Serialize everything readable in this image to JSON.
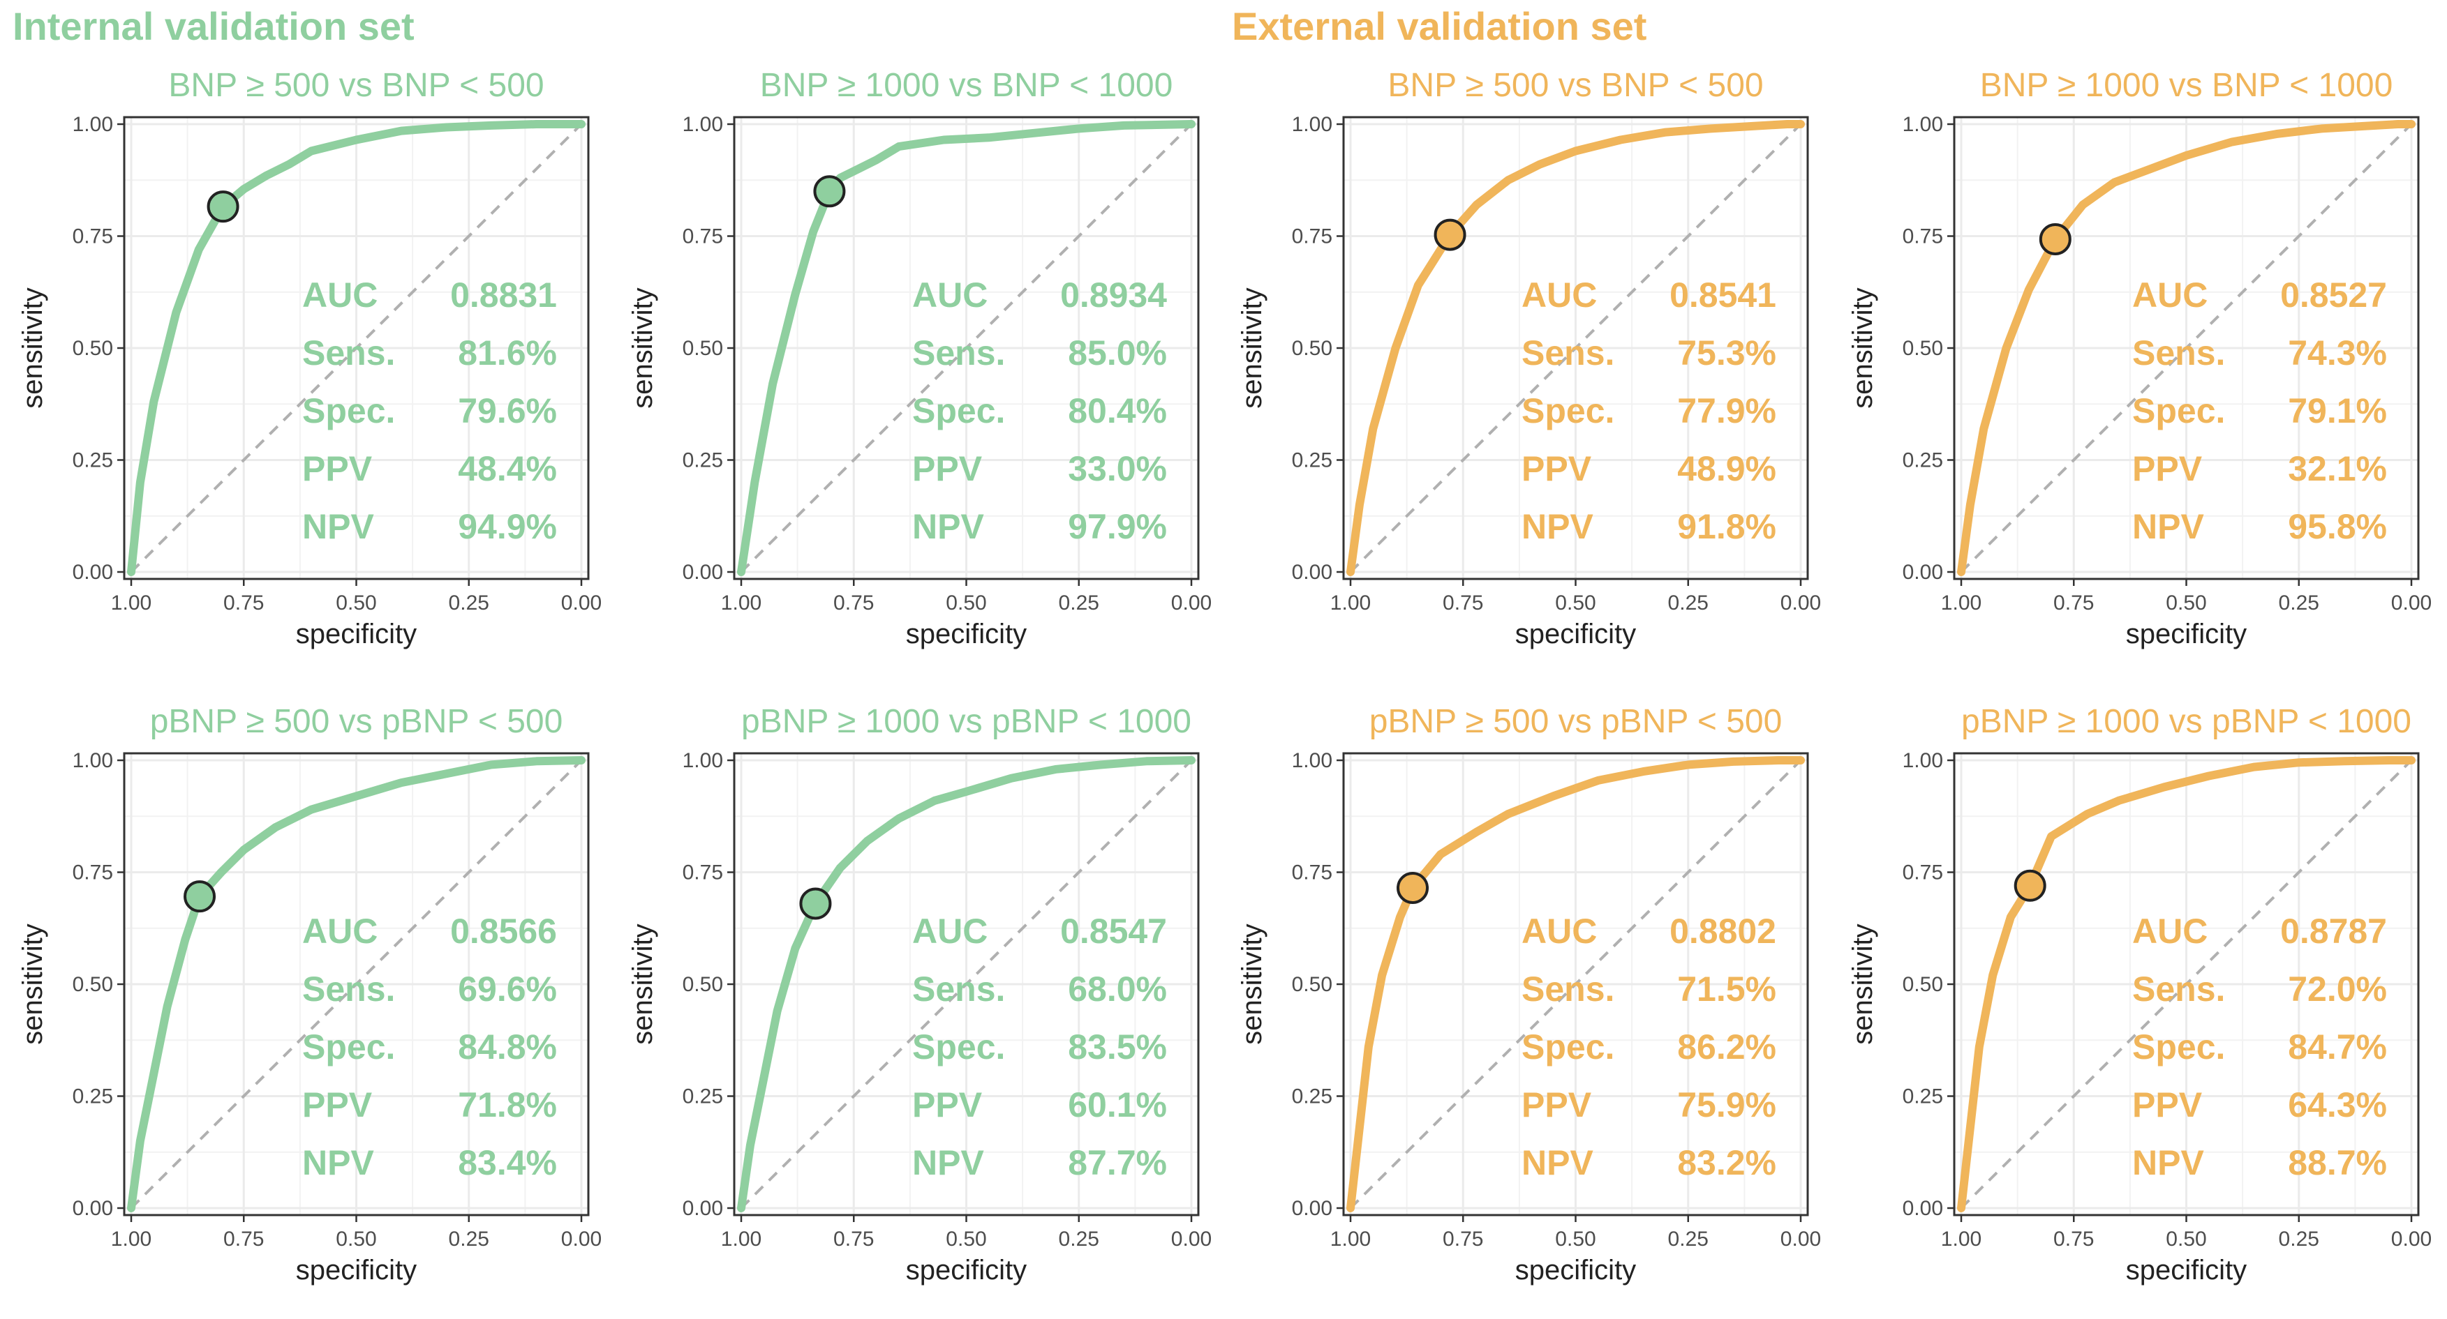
{
  "sections": {
    "internal_title": "Internal validation set",
    "external_title": "External validation set"
  },
  "colors": {
    "internal": "#8fcf9f",
    "external": "#f0b55a",
    "diagonal": "#b0b0b0",
    "grid": "#ebebeb"
  },
  "chart_data": [
    {
      "type": "line",
      "group": "internal",
      "title": "BNP ≥ 500 vs BNP < 500",
      "xlabel": "specificity",
      "ylabel": "sensitivity",
      "xlim": [
        1,
        0
      ],
      "ylim": [
        0,
        1
      ],
      "xticks": [
        "1.00",
        "0.75",
        "0.50",
        "0.25",
        "0.00"
      ],
      "yticks": [
        "0.00",
        "0.25",
        "0.50",
        "0.75",
        "1.00"
      ],
      "roc": {
        "specificity": [
          1.0,
          0.98,
          0.95,
          0.9,
          0.85,
          0.796,
          0.75,
          0.7,
          0.65,
          0.6,
          0.5,
          0.4,
          0.3,
          0.2,
          0.1,
          0.0
        ],
        "sensitivity": [
          0.0,
          0.2,
          0.38,
          0.58,
          0.72,
          0.816,
          0.855,
          0.885,
          0.91,
          0.94,
          0.965,
          0.985,
          0.993,
          0.997,
          1.0,
          1.0
        ]
      },
      "cutoff": {
        "specificity": 0.796,
        "sensitivity": 0.816
      },
      "metrics": [
        {
          "label": "AUC",
          "value": "0.8831"
        },
        {
          "label": "Sens.",
          "value": "81.6%"
        },
        {
          "label": "Spec.",
          "value": "79.6%"
        },
        {
          "label": "PPV",
          "value": "48.4%"
        },
        {
          "label": "NPV",
          "value": "94.9%"
        }
      ]
    },
    {
      "type": "line",
      "group": "internal",
      "title": "BNP ≥ 1000 vs BNP < 1000",
      "xlabel": "specificity",
      "ylabel": "sensitivity",
      "xlim": [
        1,
        0
      ],
      "ylim": [
        0,
        1
      ],
      "xticks": [
        "1.00",
        "0.75",
        "0.50",
        "0.25",
        "0.00"
      ],
      "yticks": [
        "0.00",
        "0.25",
        "0.50",
        "0.75",
        "1.00"
      ],
      "roc": {
        "specificity": [
          1.0,
          0.97,
          0.93,
          0.88,
          0.84,
          0.804,
          0.78,
          0.74,
          0.7,
          0.65,
          0.55,
          0.45,
          0.35,
          0.25,
          0.15,
          0.0
        ],
        "sensitivity": [
          0.0,
          0.2,
          0.42,
          0.62,
          0.76,
          0.85,
          0.88,
          0.9,
          0.92,
          0.95,
          0.965,
          0.97,
          0.98,
          0.99,
          0.997,
          1.0
        ]
      },
      "cutoff": {
        "specificity": 0.804,
        "sensitivity": 0.85
      },
      "metrics": [
        {
          "label": "AUC",
          "value": "0.8934"
        },
        {
          "label": "Sens.",
          "value": "85.0%"
        },
        {
          "label": "Spec.",
          "value": "80.4%"
        },
        {
          "label": "PPV",
          "value": "33.0%"
        },
        {
          "label": "NPV",
          "value": "97.9%"
        }
      ]
    },
    {
      "type": "line",
      "group": "external",
      "title": "BNP ≥ 500 vs BNP < 500",
      "xlabel": "specificity",
      "ylabel": "sensitivity",
      "xlim": [
        1,
        0
      ],
      "ylim": [
        0,
        1
      ],
      "xticks": [
        "1.00",
        "0.75",
        "0.50",
        "0.25",
        "0.00"
      ],
      "yticks": [
        "0.00",
        "0.25",
        "0.50",
        "0.75",
        "1.00"
      ],
      "roc": {
        "specificity": [
          1.0,
          0.98,
          0.95,
          0.9,
          0.85,
          0.779,
          0.72,
          0.65,
          0.58,
          0.5,
          0.4,
          0.3,
          0.2,
          0.1,
          0.03,
          0.0
        ],
        "sensitivity": [
          0.0,
          0.15,
          0.32,
          0.5,
          0.64,
          0.753,
          0.82,
          0.875,
          0.91,
          0.94,
          0.965,
          0.982,
          0.99,
          0.996,
          1.0,
          1.0
        ]
      },
      "cutoff": {
        "specificity": 0.779,
        "sensitivity": 0.753
      },
      "metrics": [
        {
          "label": "AUC",
          "value": "0.8541"
        },
        {
          "label": "Sens.",
          "value": "75.3%"
        },
        {
          "label": "Spec.",
          "value": "77.9%"
        },
        {
          "label": "PPV",
          "value": "48.9%"
        },
        {
          "label": "NPV",
          "value": "91.8%"
        }
      ]
    },
    {
      "type": "line",
      "group": "external",
      "title": "BNP ≥ 1000 vs BNP < 1000",
      "xlabel": "specificity",
      "ylabel": "sensitivity",
      "xlim": [
        1,
        0
      ],
      "ylim": [
        0,
        1
      ],
      "xticks": [
        "1.00",
        "0.75",
        "0.50",
        "0.25",
        "0.00"
      ],
      "yticks": [
        "0.00",
        "0.25",
        "0.50",
        "0.75",
        "1.00"
      ],
      "roc": {
        "specificity": [
          1.0,
          0.98,
          0.95,
          0.9,
          0.85,
          0.791,
          0.73,
          0.66,
          0.58,
          0.5,
          0.4,
          0.3,
          0.2,
          0.1,
          0.03,
          0.0
        ],
        "sensitivity": [
          0.0,
          0.15,
          0.32,
          0.5,
          0.63,
          0.743,
          0.82,
          0.87,
          0.9,
          0.93,
          0.96,
          0.978,
          0.99,
          0.996,
          1.0,
          1.0
        ]
      },
      "cutoff": {
        "specificity": 0.791,
        "sensitivity": 0.743
      },
      "metrics": [
        {
          "label": "AUC",
          "value": "0.8527"
        },
        {
          "label": "Sens.",
          "value": "74.3%"
        },
        {
          "label": "Spec.",
          "value": "79.1%"
        },
        {
          "label": "PPV",
          "value": "32.1%"
        },
        {
          "label": "NPV",
          "value": "95.8%"
        }
      ]
    },
    {
      "type": "line",
      "group": "internal",
      "title": "pBNP ≥ 500 vs pBNP < 500",
      "xlabel": "specificity",
      "ylabel": "sensitivity",
      "xlim": [
        1,
        0
      ],
      "ylim": [
        0,
        1
      ],
      "xticks": [
        "1.00",
        "0.75",
        "0.50",
        "0.25",
        "0.00"
      ],
      "yticks": [
        "0.00",
        "0.25",
        "0.50",
        "0.75",
        "1.00"
      ],
      "roc": {
        "specificity": [
          1.0,
          0.98,
          0.95,
          0.92,
          0.88,
          0.848,
          0.8,
          0.75,
          0.68,
          0.6,
          0.5,
          0.4,
          0.3,
          0.2,
          0.1,
          0.0
        ],
        "sensitivity": [
          0.0,
          0.15,
          0.3,
          0.45,
          0.6,
          0.696,
          0.75,
          0.8,
          0.85,
          0.89,
          0.92,
          0.95,
          0.97,
          0.99,
          0.998,
          1.0
        ]
      },
      "cutoff": {
        "specificity": 0.848,
        "sensitivity": 0.696
      },
      "metrics": [
        {
          "label": "AUC",
          "value": "0.8566"
        },
        {
          "label": "Sens.",
          "value": "69.6%"
        },
        {
          "label": "Spec.",
          "value": "84.8%"
        },
        {
          "label": "PPV",
          "value": "71.8%"
        },
        {
          "label": "NPV",
          "value": "83.4%"
        }
      ]
    },
    {
      "type": "line",
      "group": "internal",
      "title": "pBNP ≥ 1000 vs pBNP < 1000",
      "xlabel": "specificity",
      "ylabel": "sensitivity",
      "xlim": [
        1,
        0
      ],
      "ylim": [
        0,
        1
      ],
      "xticks": [
        "1.00",
        "0.75",
        "0.50",
        "0.25",
        "0.00"
      ],
      "yticks": [
        "0.00",
        "0.25",
        "0.50",
        "0.75",
        "1.00"
      ],
      "roc": {
        "specificity": [
          1.0,
          0.98,
          0.95,
          0.92,
          0.88,
          0.835,
          0.78,
          0.72,
          0.65,
          0.57,
          0.5,
          0.4,
          0.3,
          0.2,
          0.1,
          0.0
        ],
        "sensitivity": [
          0.0,
          0.14,
          0.29,
          0.44,
          0.58,
          0.68,
          0.76,
          0.82,
          0.87,
          0.91,
          0.93,
          0.96,
          0.98,
          0.99,
          0.998,
          1.0
        ]
      },
      "cutoff": {
        "specificity": 0.835,
        "sensitivity": 0.68
      },
      "metrics": [
        {
          "label": "AUC",
          "value": "0.8547"
        },
        {
          "label": "Sens.",
          "value": "68.0%"
        },
        {
          "label": "Spec.",
          "value": "83.5%"
        },
        {
          "label": "PPV",
          "value": "60.1%"
        },
        {
          "label": "NPV",
          "value": "87.7%"
        }
      ]
    },
    {
      "type": "line",
      "group": "external",
      "title": "pBNP ≥ 500 vs pBNP < 500",
      "xlabel": "specificity",
      "ylabel": "sensitivity",
      "xlim": [
        1,
        0
      ],
      "ylim": [
        0,
        1
      ],
      "xticks": [
        "1.00",
        "0.75",
        "0.50",
        "0.25",
        "0.00"
      ],
      "yticks": [
        "0.00",
        "0.25",
        "0.50",
        "0.75",
        "1.00"
      ],
      "roc": {
        "specificity": [
          1.0,
          0.98,
          0.96,
          0.93,
          0.89,
          0.862,
          0.8,
          0.72,
          0.65,
          0.55,
          0.45,
          0.35,
          0.25,
          0.15,
          0.05,
          0.0
        ],
        "sensitivity": [
          0.0,
          0.18,
          0.36,
          0.52,
          0.65,
          0.715,
          0.79,
          0.84,
          0.88,
          0.92,
          0.955,
          0.975,
          0.99,
          0.997,
          1.0,
          1.0
        ]
      },
      "cutoff": {
        "specificity": 0.862,
        "sensitivity": 0.715
      },
      "metrics": [
        {
          "label": "AUC",
          "value": "0.8802"
        },
        {
          "label": "Sens.",
          "value": "71.5%"
        },
        {
          "label": "Spec.",
          "value": "86.2%"
        },
        {
          "label": "PPV",
          "value": "75.9%"
        },
        {
          "label": "NPV",
          "value": "83.2%"
        }
      ]
    },
    {
      "type": "line",
      "group": "external",
      "title": "pBNP ≥ 1000 vs pBNP < 1000",
      "xlabel": "specificity",
      "ylabel": "sensitivity",
      "xlim": [
        1,
        0
      ],
      "ylim": [
        0,
        1
      ],
      "xticks": [
        "1.00",
        "0.75",
        "0.50",
        "0.25",
        "0.00"
      ],
      "yticks": [
        "0.00",
        "0.25",
        "0.50",
        "0.75",
        "1.00"
      ],
      "roc": {
        "specificity": [
          1.0,
          0.98,
          0.96,
          0.93,
          0.89,
          0.847,
          0.8,
          0.72,
          0.65,
          0.55,
          0.45,
          0.35,
          0.25,
          0.15,
          0.05,
          0.0
        ],
        "sensitivity": [
          0.0,
          0.18,
          0.36,
          0.52,
          0.65,
          0.72,
          0.83,
          0.88,
          0.91,
          0.94,
          0.965,
          0.985,
          0.995,
          0.998,
          1.0,
          1.0
        ]
      },
      "cutoff": {
        "specificity": 0.847,
        "sensitivity": 0.72
      },
      "metrics": [
        {
          "label": "AUC",
          "value": "0.8787"
        },
        {
          "label": "Sens.",
          "value": "72.0%"
        },
        {
          "label": "Spec.",
          "value": "84.7%"
        },
        {
          "label": "PPV",
          "value": "64.3%"
        },
        {
          "label": "NPV",
          "value": "88.7%"
        }
      ]
    }
  ]
}
